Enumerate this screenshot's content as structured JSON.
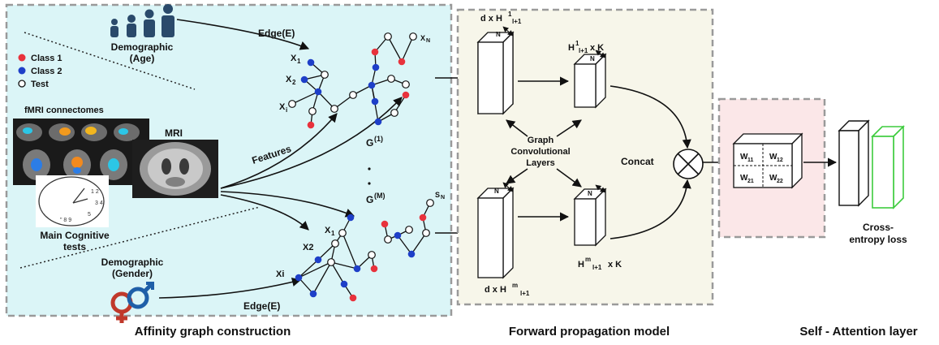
{
  "colors": {
    "class1": "#e8323c",
    "class2": "#1e3fc8",
    "test": "#ffffff",
    "panel_affinity": "#dbf5f7",
    "panel_forward": "#f7f6ea",
    "panel_attention": "#fbe7e8",
    "loss_block": "#3dcb3d",
    "person_icon": "#2a4a6b",
    "gender_female": "#c0392b",
    "gender_male": "#1f5fa8"
  },
  "legend": [
    {
      "label": "Class 1",
      "color": "#e8323c"
    },
    {
      "label": "Class 2",
      "color": "#1e3fc8"
    },
    {
      "label": "Test",
      "color": "#ffffff"
    }
  ],
  "affinity": {
    "caption": "Affinity graph construction",
    "demographic_age": [
      "Demographic",
      "(Age)"
    ],
    "demographic_gender": [
      "Demographic",
      "(Gender)"
    ],
    "edge_top": "Edge(E)",
    "edge_bottom": "Edge(E)",
    "fmri_label": "fMRI connectomes",
    "mri_label": "MRI",
    "cognitive_label": [
      "Main Cognitive",
      "tests"
    ],
    "features_label": "Features",
    "graph1_label": "G",
    "graph1_sup": "(1)",
    "graphM_label": "G",
    "graphM_sup": "(M)",
    "top_nodes": {
      "x1": "X",
      "x1_sub": "1",
      "x2": "X",
      "x2_sub": "2",
      "xi": "X",
      "xi_sub": "i",
      "xn": "X",
      "xn_sub": "N"
    },
    "bottom_nodes": {
      "x1": "X",
      "x1_sub": "1",
      "x2": "X2",
      "xi": "Xi",
      "sn": "S",
      "sn_sub": "N"
    }
  },
  "forward": {
    "caption": "Forward propagation model",
    "top_in": {
      "main": "d x H",
      "sup": "1",
      "sub": "l+1"
    },
    "top_out": {
      "main": "H",
      "sup": "1",
      "sub": "l+1",
      "tail": " x K"
    },
    "bottom_in": {
      "main": "d x H",
      "sup": "m",
      "sub": "l+1"
    },
    "bottom_out": {
      "main": "H",
      "sup": "m",
      "sub": "l+1",
      "tail": "x K"
    },
    "n_label": "N",
    "gcl": [
      "Graph",
      "Convolutional",
      "Layers"
    ],
    "concat": "Concat"
  },
  "attention": {
    "caption": "Self - Attention layer",
    "w11": {
      "main": "W",
      "sub": "11"
    },
    "w12": {
      "main": "W",
      "sub": "12"
    },
    "w21": {
      "main": "W",
      "sub": "21"
    },
    "w22": {
      "main": "W",
      "sub": "22"
    }
  },
  "loss": {
    "label": [
      "Cross-",
      "entropy loss"
    ]
  }
}
